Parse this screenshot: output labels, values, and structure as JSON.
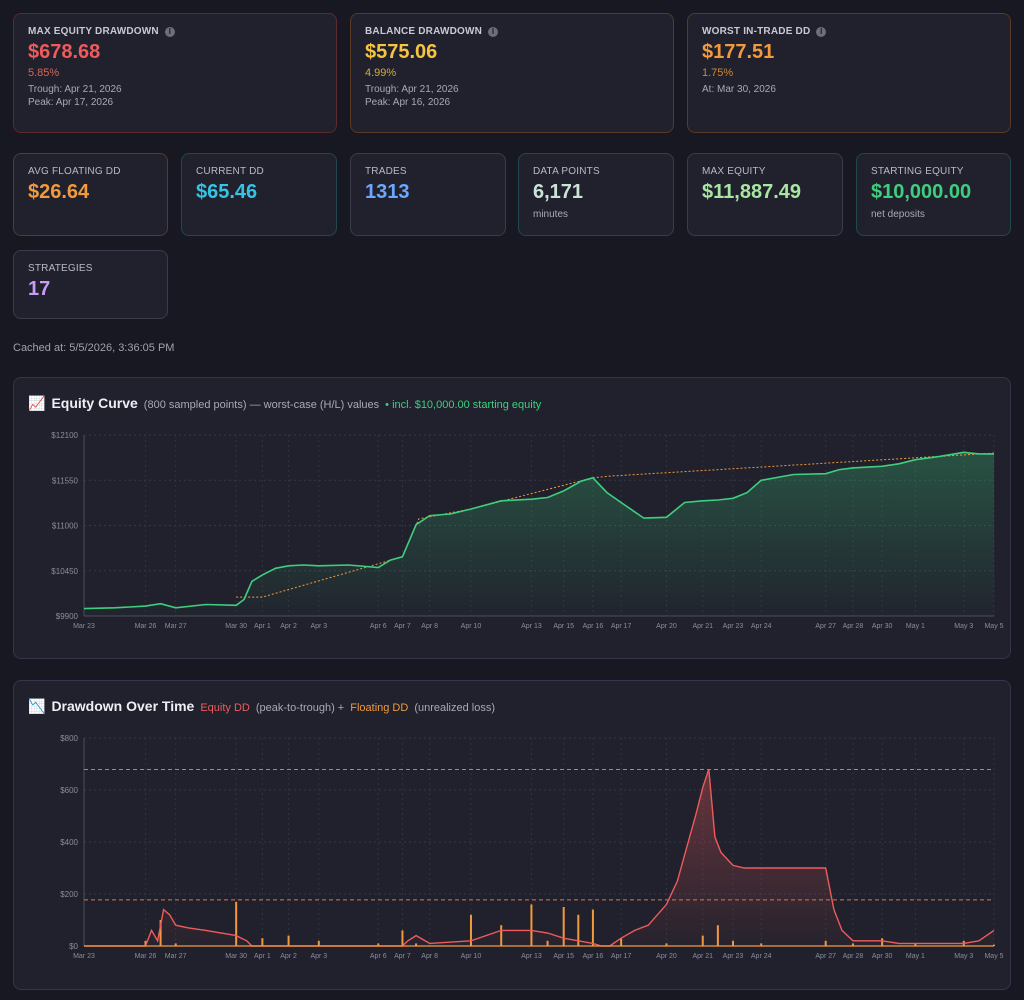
{
  "stats": {
    "max_equity_dd": {
      "label": "MAX EQUITY DRAWDOWN",
      "value": "$678.68",
      "pct": "5.85%",
      "line1": "Trough: Apr 21, 2026",
      "line2": "Peak: Apr 17, 2026"
    },
    "balance_dd": {
      "label": "BALANCE DRAWDOWN",
      "value": "$575.06",
      "pct": "4.99%",
      "line1": "Trough: Apr 21, 2026",
      "line2": "Peak: Apr 16, 2026"
    },
    "worst_trade_dd": {
      "label": "WORST IN-TRADE DD",
      "value": "$177.51",
      "pct": "1.75%",
      "line1": "At: Mar 30, 2026"
    },
    "avg_floating_dd": {
      "label": "AVG FLOATING DD",
      "value": "$26.64"
    },
    "current_dd": {
      "label": "CURRENT DD",
      "value": "$65.46"
    },
    "trades": {
      "label": "TRADES",
      "value": "1313"
    },
    "data_points": {
      "label": "DATA POINTS",
      "value": "6,171",
      "sub": "minutes"
    },
    "max_equity": {
      "label": "MAX EQUITY",
      "value": "$11,887.49"
    },
    "starting_equity": {
      "label": "STARTING EQUITY",
      "value": "$10,000.00",
      "sub": "net deposits"
    },
    "strategies": {
      "label": "STRATEGIES",
      "value": "17"
    }
  },
  "colors": {
    "red": "#ef5b5b",
    "yellow": "#f5c542",
    "orange": "#f39a3c",
    "cyan": "#35c3e6",
    "blue": "#6aa7ff",
    "green_light": "#a8e6a1",
    "green": "#3ecf7e",
    "purple": "#c69cf5"
  },
  "cached": "Cached at: 5/5/2026, 3:36:05 PM",
  "equity_panel": {
    "icon": "chart-increasing-icon",
    "title": "Equity Curve",
    "note": "(800 sampled points) — worst-case (H/L) values",
    "note_green": "• incl. $10,000.00 starting equity"
  },
  "dd_panel": {
    "icon": "chart-decreasing-icon",
    "title": "Drawdown Over Time",
    "legend_equity": "Equity DD",
    "legend_equity_desc": "(peak-to-trough) +",
    "legend_floating": "Floating DD",
    "legend_floating_desc": "(unrealized loss)"
  },
  "x_ticks": [
    "Mar 23",
    "Mar 26",
    "Mar 27",
    "Mar 30",
    "Apr 1",
    "Apr 2",
    "Apr 3",
    "Apr 6",
    "Apr 7",
    "Apr 8",
    "Apr 10",
    "Apr 13",
    "Apr 15",
    "Apr 16",
    "Apr 17",
    "Apr 20",
    "Apr 21",
    "Apr 23",
    "Apr 24",
    "Apr 27",
    "Apr 28",
    "Apr 30",
    "May 1",
    "May 3",
    "May 5"
  ],
  "chart_data": [
    {
      "type": "line",
      "title": "Equity Curve",
      "ylim": [
        9900,
        12100
      ],
      "y_ticks": [
        "$12100",
        "$11550",
        "$11000",
        "$10450",
        "$9900"
      ],
      "series": [
        {
          "name": "Equity",
          "x": [
            0,
            0.5,
            1,
            1.5,
            2,
            2.5,
            3,
            3.3,
            3.6,
            4,
            4.5,
            5,
            5.5,
            6,
            6.5,
            7,
            7.5,
            8,
            8.5,
            9,
            9.5,
            10,
            10.5,
            11,
            11.5,
            12,
            12.3,
            12.6,
            13,
            13.5,
            14,
            14.5,
            15,
            15.5,
            16,
            16.5,
            17,
            17.5,
            18,
            18.5,
            19,
            19.5,
            20,
            20.5,
            21,
            21.5,
            22,
            22.5,
            23,
            23.5,
            24
          ],
          "y": [
            9990,
            10000,
            10020,
            10050,
            10000,
            10040,
            10030,
            10100,
            10320,
            10400,
            10480,
            10510,
            10520,
            10510,
            10520,
            10490,
            10580,
            10620,
            11010,
            11120,
            11140,
            11200,
            11300,
            11320,
            11340,
            11420,
            11480,
            11540,
            11580,
            11400,
            11280,
            11090,
            11100,
            11280,
            11300,
            11310,
            11330,
            11400,
            11550,
            11620,
            11630,
            11680,
            11700,
            11710,
            11720,
            11750,
            11800,
            11840,
            11890,
            11870,
            11870
          ]
        },
        {
          "name": "Peak",
          "x": [
            3,
            4,
            8,
            8.6,
            10,
            13,
            13.6,
            24
          ],
          "y": [
            10130,
            10130,
            10620,
            11080,
            11200,
            11580,
            11600,
            11880
          ]
        }
      ]
    },
    {
      "type": "line",
      "title": "Drawdown Over Time",
      "ylim": [
        0,
        800
      ],
      "y_ticks": [
        "$800",
        "$600",
        "$400",
        "$200",
        "$0"
      ],
      "reference_lines": [
        678.68,
        177.51
      ],
      "series": [
        {
          "name": "Equity DD",
          "x": [
            0,
            1,
            1.2,
            1.4,
            1.6,
            1.8,
            2,
            2.2,
            2.5,
            3,
            3.2,
            3.4,
            3.6,
            8,
            8.2,
            8.5,
            9,
            10,
            10.5,
            11,
            11.5,
            12,
            12.5,
            13,
            13.3,
            13.6,
            14,
            14.3,
            14.6,
            15,
            15.3,
            15.6,
            15.8,
            16,
            16.2,
            16.4,
            16.6,
            17,
            17.4,
            18,
            18.6,
            19,
            19.3,
            19.6,
            20,
            20.5,
            21,
            21.5,
            22,
            22.5,
            23,
            23.5,
            24
          ],
          "y": [
            0,
            0,
            60,
            20,
            140,
            120,
            80,
            70,
            60,
            40,
            30,
            20,
            0,
            0,
            20,
            40,
            10,
            20,
            60,
            60,
            50,
            30,
            20,
            10,
            0,
            0,
            30,
            60,
            80,
            160,
            250,
            400,
            500,
            610,
            680,
            420,
            360,
            310,
            300,
            300,
            300,
            300,
            140,
            60,
            20,
            20,
            20,
            10,
            10,
            10,
            10,
            20,
            60
          ]
        },
        {
          "name": "Floating DD",
          "x": [
            0,
            1,
            1.5,
            2,
            3,
            3.2,
            4,
            5,
            6,
            7,
            8,
            8.5,
            9,
            10,
            10.5,
            11,
            11.5,
            12,
            12.5,
            13,
            14,
            15,
            16,
            16.5,
            17,
            18,
            19,
            20,
            21,
            22,
            23,
            24
          ],
          "y": [
            0,
            20,
            100,
            10,
            170,
            0,
            30,
            40,
            20,
            10,
            60,
            10,
            0,
            120,
            80,
            160,
            20,
            150,
            120,
            140,
            30,
            10,
            40,
            80,
            20,
            10,
            20,
            10,
            30,
            10,
            20,
            5
          ]
        }
      ]
    }
  ]
}
